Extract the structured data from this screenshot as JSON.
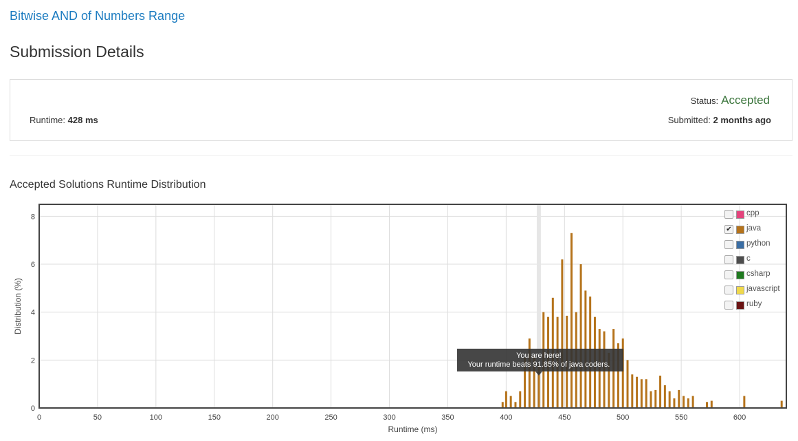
{
  "problem": {
    "title": "Bitwise AND of Numbers Range"
  },
  "page": {
    "title": "Submission Details"
  },
  "summary": {
    "runtime_label": "Runtime:",
    "runtime_value": "428 ms",
    "status_label": "Status:",
    "status_value": "Accepted",
    "submitted_label": "Submitted:",
    "submitted_value": "2 months ago"
  },
  "distribution": {
    "title": "Accepted Solutions Runtime Distribution"
  },
  "legend": [
    {
      "name": "cpp",
      "color": "#e5447d",
      "checked": false
    },
    {
      "name": "java",
      "color": "#b5731b",
      "checked": true
    },
    {
      "name": "python",
      "color": "#3a6ea5",
      "checked": false
    },
    {
      "name": "c",
      "color": "#4d4d4d",
      "checked": false
    },
    {
      "name": "csharp",
      "color": "#1f7a1f",
      "checked": false
    },
    {
      "name": "javascript",
      "color": "#f0d94c",
      "checked": false
    },
    {
      "name": "ruby",
      "color": "#6b1414",
      "checked": false
    }
  ],
  "tooltip": {
    "line1": "You are here!",
    "line2": "Your runtime beats 91.85% of java coders."
  },
  "chart_data": {
    "type": "bar",
    "xlabel": "Runtime (ms)",
    "ylabel": "Distribution (%)",
    "xlim": [
      0,
      640
    ],
    "ylim": [
      0,
      8.5
    ],
    "xticks": [
      0,
      50,
      100,
      150,
      200,
      250,
      300,
      350,
      400,
      450,
      500,
      550,
      600
    ],
    "yticks": [
      0,
      2,
      4,
      6,
      8
    ],
    "grid": true,
    "legend_position": "top-right",
    "bar_color": "#b5731b",
    "highlight_x": 428,
    "series": [
      {
        "name": "java",
        "x": [
          397,
          400,
          404,
          408,
          412,
          416,
          420,
          424,
          428,
          432,
          436,
          440,
          444,
          448,
          452,
          456,
          460,
          464,
          468,
          472,
          476,
          480,
          484,
          488,
          492,
          496,
          500,
          504,
          508,
          512,
          516,
          520,
          524,
          528,
          532,
          536,
          540,
          544,
          548,
          552,
          556,
          560,
          572,
          576,
          604,
          636
        ],
        "values": [
          0.25,
          0.7,
          0.5,
          0.25,
          0.7,
          2.1,
          2.9,
          2.2,
          1.8,
          4.0,
          3.8,
          4.6,
          3.8,
          6.2,
          3.85,
          7.3,
          4.0,
          6.0,
          4.9,
          4.65,
          3.8,
          3.3,
          3.2,
          2.3,
          3.3,
          2.7,
          2.9,
          2.0,
          1.4,
          1.3,
          1.2,
          1.2,
          0.7,
          0.75,
          1.35,
          0.95,
          0.7,
          0.4,
          0.75,
          0.5,
          0.4,
          0.5,
          0.25,
          0.3,
          0.5,
          0.3
        ]
      }
    ]
  }
}
